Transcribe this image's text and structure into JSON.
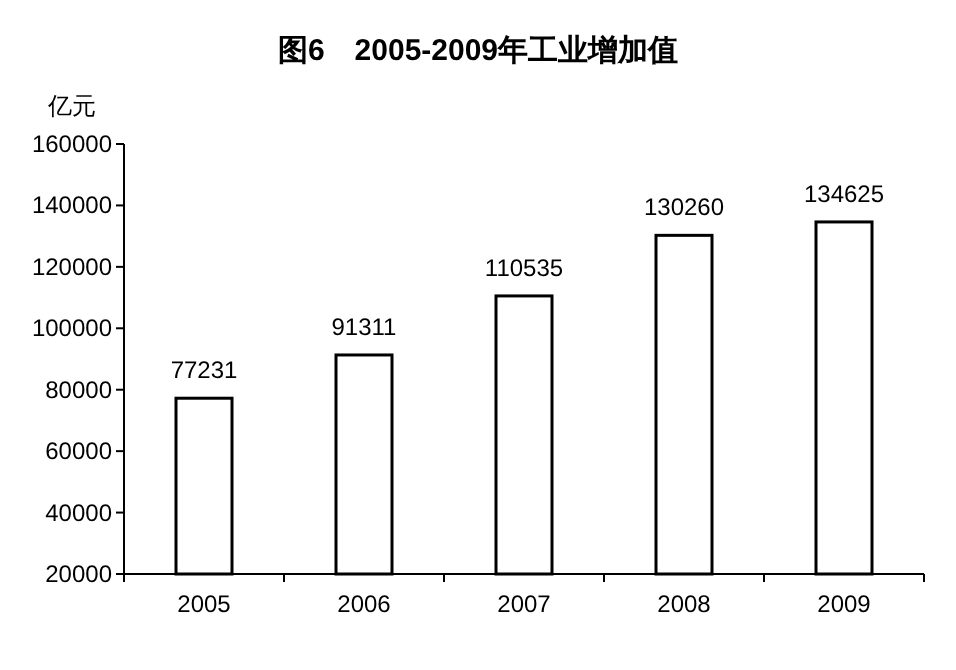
{
  "chart_data": {
    "type": "bar",
    "title": "图6　2005-2009年工业增加值",
    "ylabel": "亿元",
    "categories": [
      "2005",
      "2006",
      "2007",
      "2008",
      "2009"
    ],
    "values": [
      77231,
      91311,
      110535,
      130260,
      134625
    ],
    "color": "#ffffff",
    "ylim": [
      20000,
      160000
    ],
    "yticks": [
      20000,
      40000,
      60000,
      80000,
      100000,
      120000,
      140000,
      160000
    ],
    "data_labels": true,
    "grid": false
  }
}
